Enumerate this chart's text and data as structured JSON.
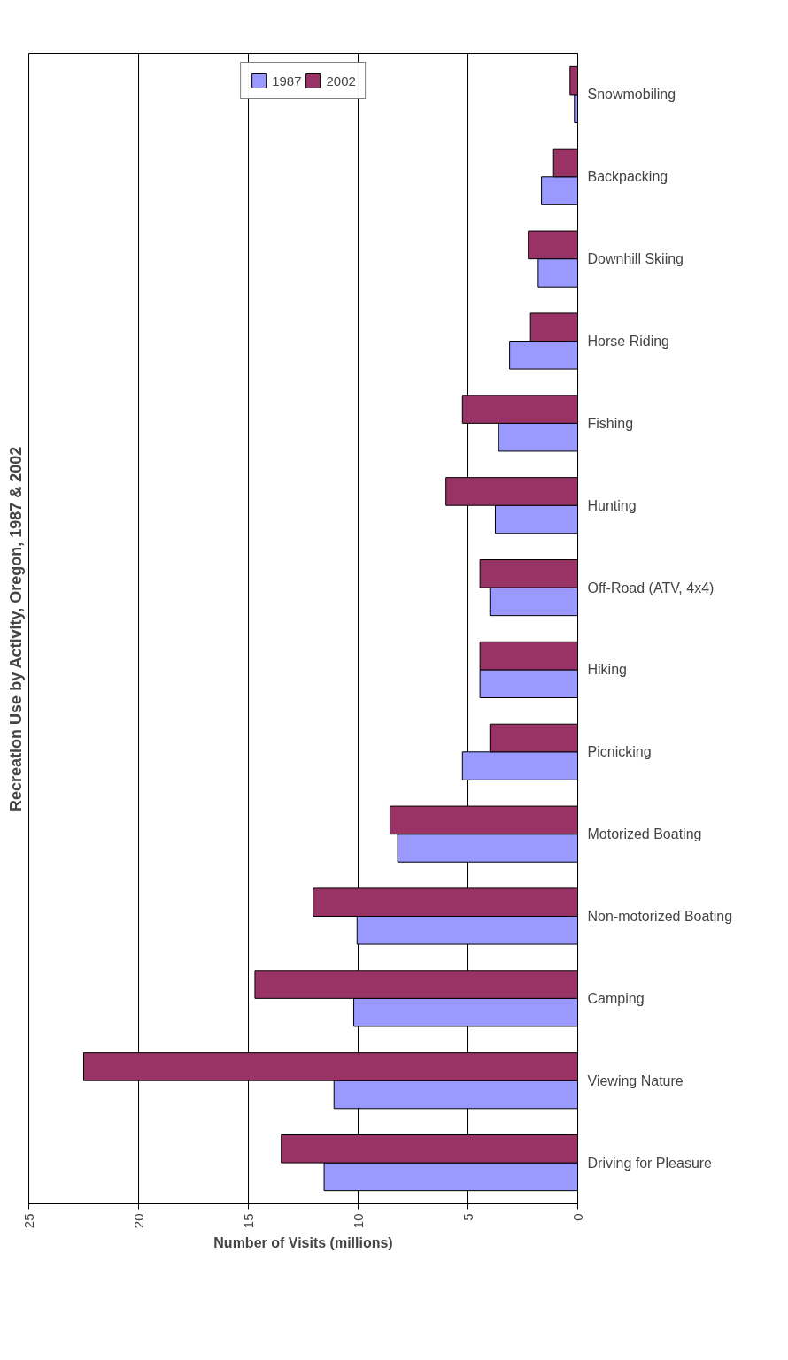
{
  "chart_data": {
    "type": "bar",
    "orientation": "horizontal",
    "title": "Recreation Use by Activity, Oregon, 1987 & 2002",
    "xlabel": "Number of Visits (millions)",
    "categories": [
      "Snowmobiling",
      "Backpacking",
      "Downhill Skiing",
      "Horse Riding",
      "Fishing",
      "Hunting",
      "Off-Road (ATV, 4x4)",
      "Hiking",
      "Picnicking",
      "Motorized Boating",
      "Non-motorized Boating",
      "Camping",
      "Viewing Nature",
      "Driving for Pleasure"
    ],
    "series": [
      {
        "name": "1987",
        "color": "#9999ff",
        "values": [
          0.15,
          1.65,
          1.8,
          3.1,
          3.6,
          3.75,
          4.0,
          4.45,
          5.25,
          8.2,
          10.05,
          10.2,
          11.1,
          11.55
        ]
      },
      {
        "name": "2002",
        "color": "#993366",
        "values": [
          0.35,
          1.1,
          2.25,
          2.15,
          5.25,
          6.0,
          4.45,
          4.45,
          4.0,
          8.55,
          12.05,
          14.7,
          22.5,
          13.5
        ]
      }
    ],
    "xlim": [
      25,
      0
    ],
    "xticks": [
      0,
      5,
      10,
      15,
      20,
      25
    ],
    "grid": "x",
    "legend": "top"
  }
}
